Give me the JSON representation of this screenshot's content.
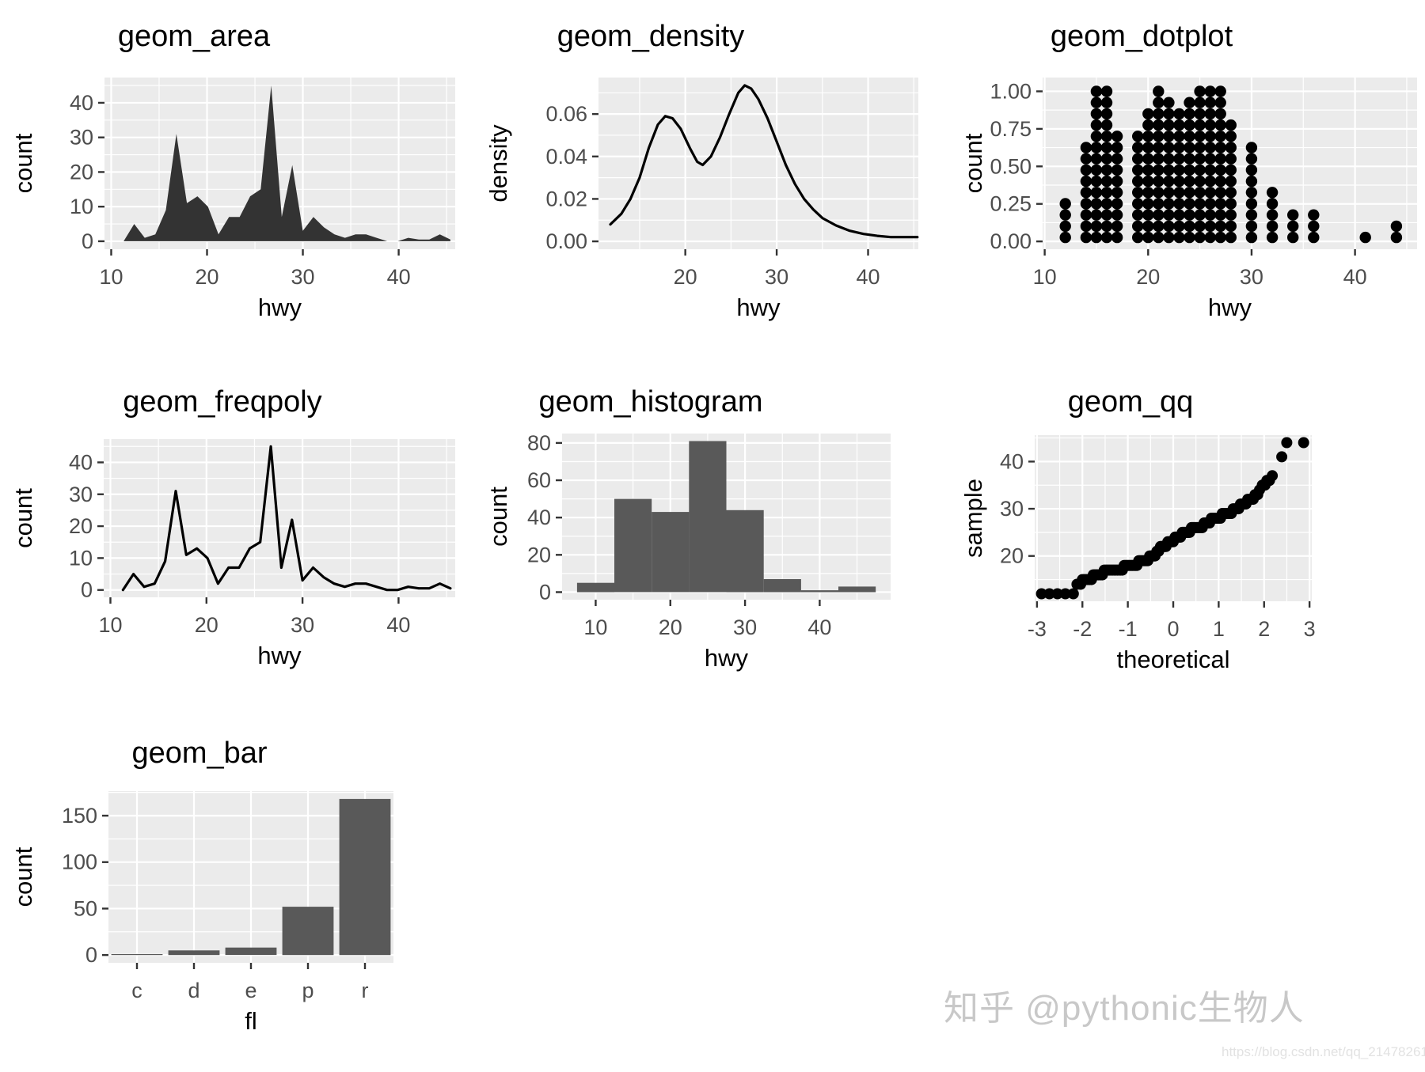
{
  "theme": {
    "panel_bg": "#EBEBEB",
    "grid_color": "#FFFFFF",
    "tick_color": "#333333",
    "tick_label_color": "#4D4D4D",
    "title_color": "#000000",
    "axis_title_color": "#000000"
  },
  "watermark": {
    "line1": "知乎 @pythonic生物人",
    "line2": "https://blog.csdn.net/qq_21478261"
  },
  "chart_data": [
    {
      "id": "area",
      "type": "area",
      "title": "geom_area",
      "xlabel": "hwy",
      "ylabel": "count",
      "xlim": [
        9.3,
        45.9
      ],
      "ylim": [
        -2.3,
        47.3
      ],
      "xticks": [
        10,
        20,
        30,
        40
      ],
      "yticks": [
        0,
        10,
        20,
        30,
        40
      ],
      "fill": "#333333",
      "points": [
        [
          11.3,
          0
        ],
        [
          12.4,
          5
        ],
        [
          13.5,
          1
        ],
        [
          14.6,
          2
        ],
        [
          15.7,
          9
        ],
        [
          16.8,
          31
        ],
        [
          17.9,
          11
        ],
        [
          19.0,
          13
        ],
        [
          20.1,
          10
        ],
        [
          21.2,
          2
        ],
        [
          22.3,
          7
        ],
        [
          23.4,
          7
        ],
        [
          24.5,
          13
        ],
        [
          25.6,
          15
        ],
        [
          26.7,
          45
        ],
        [
          27.8,
          7
        ],
        [
          28.9,
          22
        ],
        [
          30.0,
          3
        ],
        [
          31.1,
          7
        ],
        [
          32.2,
          4
        ],
        [
          33.3,
          2
        ],
        [
          34.4,
          1
        ],
        [
          35.5,
          2
        ],
        [
          36.6,
          2
        ],
        [
          37.7,
          1
        ],
        [
          38.8,
          0
        ],
        [
          39.9,
          0
        ],
        [
          41.0,
          1
        ],
        [
          42.1,
          0.5
        ],
        [
          43.2,
          0.5
        ],
        [
          44.3,
          2
        ],
        [
          45.4,
          0.5
        ]
      ]
    },
    {
      "id": "density",
      "type": "line",
      "title": "geom_density",
      "xlabel": "hwy",
      "ylabel": "density",
      "xlim": [
        10.5,
        45.5
      ],
      "ylim": [
        -0.0037,
        0.0772
      ],
      "xticks": [
        20,
        30,
        40
      ],
      "yticks": [
        0,
        0.02,
        0.04,
        0.06
      ],
      "ytick_labels": [
        "0.00",
        "0.02",
        "0.04",
        "0.06"
      ],
      "stroke": "#000000",
      "points": [
        [
          11.8,
          0.008
        ],
        [
          13,
          0.013
        ],
        [
          14,
          0.02
        ],
        [
          15,
          0.03
        ],
        [
          16,
          0.044
        ],
        [
          17,
          0.055
        ],
        [
          17.8,
          0.059
        ],
        [
          18.6,
          0.058
        ],
        [
          19.5,
          0.053
        ],
        [
          20.5,
          0.044
        ],
        [
          21.3,
          0.0375
        ],
        [
          21.9,
          0.036
        ],
        [
          22.8,
          0.04
        ],
        [
          23.8,
          0.049
        ],
        [
          24.8,
          0.06
        ],
        [
          25.8,
          0.07
        ],
        [
          26.5,
          0.0735
        ],
        [
          27.2,
          0.072
        ],
        [
          28,
          0.067
        ],
        [
          29,
          0.058
        ],
        [
          30,
          0.047
        ],
        [
          31,
          0.036
        ],
        [
          32,
          0.027
        ],
        [
          33,
          0.02
        ],
        [
          34,
          0.015
        ],
        [
          35,
          0.011
        ],
        [
          36.5,
          0.0075
        ],
        [
          38,
          0.005
        ],
        [
          39.5,
          0.0035
        ],
        [
          41,
          0.0026
        ],
        [
          42.5,
          0.002
        ],
        [
          44,
          0.002
        ],
        [
          45.4,
          0.002
        ]
      ]
    },
    {
      "id": "dotplot",
      "type": "dotplot",
      "title": "geom_dotplot",
      "xlabel": "hwy",
      "ylabel": "count",
      "xlim": [
        9.8,
        46.0
      ],
      "ylim": [
        -0.052,
        1.092
      ],
      "xticks": [
        10,
        20,
        30,
        40
      ],
      "yticks": [
        0,
        0.25,
        0.5,
        0.75,
        1
      ],
      "ytick_labels": [
        "0.00",
        "0.25",
        "0.50",
        "0.75",
        "1.00"
      ],
      "dot_color": "#000000",
      "columns": [
        [
          12,
          4
        ],
        [
          14,
          9
        ],
        [
          15,
          14
        ],
        [
          16,
          14
        ],
        [
          17,
          10
        ],
        [
          19,
          10
        ],
        [
          20,
          12
        ],
        [
          21,
          14
        ],
        [
          22,
          13
        ],
        [
          23,
          12
        ],
        [
          24,
          13
        ],
        [
          25,
          14
        ],
        [
          26,
          14
        ],
        [
          27,
          14
        ],
        [
          28,
          11
        ],
        [
          30,
          9
        ],
        [
          32,
          5
        ],
        [
          34,
          3
        ],
        [
          36,
          3
        ],
        [
          41,
          1
        ],
        [
          44,
          2
        ]
      ]
    },
    {
      "id": "freqpoly",
      "type": "line",
      "title": "geom_freqpoly",
      "xlabel": "hwy",
      "ylabel": "count",
      "xlim": [
        9.3,
        45.9
      ],
      "ylim": [
        -2.3,
        47.3
      ],
      "xticks": [
        10,
        20,
        30,
        40
      ],
      "yticks": [
        0,
        10,
        20,
        30,
        40
      ],
      "stroke": "#000000",
      "points": [
        [
          11.3,
          0
        ],
        [
          12.4,
          5
        ],
        [
          13.5,
          1
        ],
        [
          14.6,
          2
        ],
        [
          15.7,
          9
        ],
        [
          16.8,
          31
        ],
        [
          17.9,
          11
        ],
        [
          19.0,
          13
        ],
        [
          20.1,
          10
        ],
        [
          21.2,
          2
        ],
        [
          22.3,
          7
        ],
        [
          23.4,
          7
        ],
        [
          24.5,
          13
        ],
        [
          25.6,
          15
        ],
        [
          26.7,
          45
        ],
        [
          27.8,
          7
        ],
        [
          28.9,
          22
        ],
        [
          30.0,
          3
        ],
        [
          31.1,
          7
        ],
        [
          32.2,
          4
        ],
        [
          33.3,
          2
        ],
        [
          34.4,
          1
        ],
        [
          35.5,
          2
        ],
        [
          36.6,
          2
        ],
        [
          37.7,
          1
        ],
        [
          38.8,
          0
        ],
        [
          39.9,
          0
        ],
        [
          41.0,
          1
        ],
        [
          42.1,
          0.5
        ],
        [
          43.2,
          0.5
        ],
        [
          44.3,
          2
        ],
        [
          45.4,
          0.5
        ]
      ]
    },
    {
      "id": "histogram",
      "type": "histogram",
      "title": "geom_histogram",
      "xlabel": "hwy",
      "ylabel": "count",
      "xlim": [
        5.5,
        49.5
      ],
      "ylim": [
        -4.05,
        85.05
      ],
      "xticks": [
        10,
        20,
        30,
        40
      ],
      "yticks": [
        0,
        20,
        40,
        60,
        80
      ],
      "fill": "#595959",
      "bins": {
        "centers": [
          10,
          15,
          20,
          25,
          30,
          35,
          40,
          45
        ],
        "counts": [
          5,
          50,
          43,
          81,
          44,
          7,
          1,
          3
        ],
        "width": 5
      }
    },
    {
      "id": "qq",
      "type": "scatter",
      "title": "geom_qq",
      "xlabel": "theoretical",
      "ylabel": "sample",
      "xlim": [
        -3.05,
        3.05
      ],
      "ylim": [
        10.4,
        45.6
      ],
      "xticks": [
        -3,
        -2,
        -1,
        0,
        1,
        2,
        3
      ],
      "yticks": [
        20,
        30,
        40
      ],
      "point_color": "#000000",
      "runs": [
        [
          12,
          -2.9,
          -2.2,
          5
        ],
        [
          14,
          -2.12,
          -2.04,
          2
        ],
        [
          15,
          -2.0,
          -1.8,
          6
        ],
        [
          16,
          -1.76,
          -1.56,
          8
        ],
        [
          17,
          -1.52,
          -1.12,
          12
        ],
        [
          18,
          -1.08,
          -0.8,
          10
        ],
        [
          19,
          -0.76,
          -0.56,
          8
        ],
        [
          20,
          -0.52,
          -0.4,
          6
        ],
        [
          21,
          -0.36,
          -0.32,
          2
        ],
        [
          22,
          -0.28,
          -0.16,
          6
        ],
        [
          23,
          -0.12,
          0,
          6
        ],
        [
          24,
          0.04,
          0.16,
          6
        ],
        [
          25,
          0.2,
          0.36,
          8
        ],
        [
          26,
          0.4,
          0.64,
          12
        ],
        [
          27,
          0.68,
          0.8,
          6
        ],
        [
          28,
          0.84,
          1.04,
          8
        ],
        [
          29,
          1.08,
          1.28,
          8
        ],
        [
          30,
          1.32,
          1.44,
          4
        ],
        [
          31,
          1.48,
          1.6,
          4
        ],
        [
          32,
          1.64,
          1.76,
          4
        ],
        [
          33,
          1.8,
          1.86,
          2
        ],
        [
          34,
          1.9,
          1.9,
          1
        ],
        [
          35,
          1.96,
          2.02,
          2
        ],
        [
          36,
          2.06,
          2.12,
          2
        ],
        [
          37,
          2.18,
          2.18,
          1
        ],
        [
          41,
          2.39,
          2.39,
          1
        ],
        [
          44,
          2.5,
          2.87,
          2
        ]
      ]
    },
    {
      "id": "bar",
      "type": "bar",
      "title": "geom_bar",
      "xlabel": "fl",
      "ylabel": "count",
      "categories": [
        "c",
        "d",
        "e",
        "p",
        "r"
      ],
      "values": [
        1,
        5,
        8,
        52,
        168
      ],
      "ylim": [
        -8.4,
        176.4
      ],
      "yticks": [
        0,
        50,
        100,
        150
      ],
      "fill": "#595959"
    }
  ]
}
